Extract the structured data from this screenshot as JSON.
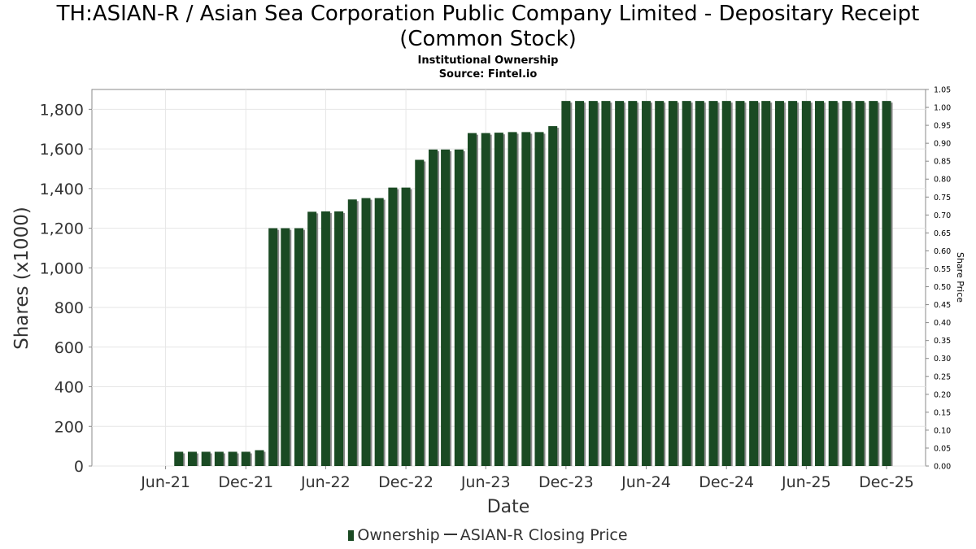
{
  "header": {
    "title_line1": "TH:ASIAN-R / Asian Sea Corporation Public Company Limited - Depositary Receipt",
    "title_line2": "(Common Stock)",
    "subtitle": "Institutional Ownership",
    "source": "Source: Fintel.io"
  },
  "legend": {
    "ownership_label": "Ownership",
    "price_label": "ASIAN-R Closing Price"
  },
  "colors": {
    "bar": "#1a4a23",
    "bar_shadow": "#8a8a8a",
    "grid": "#e6e6e6",
    "axis": "#888888"
  },
  "chart_data": {
    "type": "bar",
    "title": "TH:ASIAN-R / Asian Sea Corporation Public Company Limited - Depositary Receipt (Common Stock)",
    "xlabel": "Date",
    "ylabel": "Shares (x1000)",
    "y2label": "Share Price",
    "ylim": [
      0,
      1900
    ],
    "y2lim": [
      0,
      1.05
    ],
    "xlim": [
      "2020-12-15",
      "2026-02-28"
    ],
    "yticks": [
      0,
      200,
      400,
      600,
      800,
      1000,
      1200,
      1400,
      1600,
      1800
    ],
    "ytick_labels": [
      "0",
      "200",
      "400",
      "600",
      "800",
      "1,000",
      "1,200",
      "1,400",
      "1,600",
      "1,800"
    ],
    "y2ticks": [
      0,
      0.05,
      0.1,
      0.15,
      0.2,
      0.25,
      0.3,
      0.35,
      0.4,
      0.45,
      0.5,
      0.55,
      0.6,
      0.65,
      0.7,
      0.75,
      0.8,
      0.85,
      0.9,
      0.95,
      1.0,
      1.05
    ],
    "y2tick_labels": [
      "0.00",
      "0.05",
      "0.10",
      "0.15",
      "0.20",
      "0.25",
      "0.30",
      "0.35",
      "0.40",
      "0.45",
      "0.50",
      "0.55",
      "0.60",
      "0.65",
      "0.70",
      "0.75",
      "0.80",
      "0.85",
      "0.90",
      "0.95",
      "1.00",
      "1.05"
    ],
    "xticks": [
      {
        "date": "2021-06-01",
        "label": "Jun-21"
      },
      {
        "date": "2021-12-01",
        "label": "Dec-21"
      },
      {
        "date": "2022-06-01",
        "label": "Jun-22"
      },
      {
        "date": "2022-12-01",
        "label": "Dec-22"
      },
      {
        "date": "2023-06-01",
        "label": "Jun-23"
      },
      {
        "date": "2023-12-01",
        "label": "Dec-23"
      },
      {
        "date": "2024-06-01",
        "label": "Jun-24"
      },
      {
        "date": "2024-12-01",
        "label": "Dec-24"
      },
      {
        "date": "2025-06-01",
        "label": "Jun-25"
      },
      {
        "date": "2025-12-01",
        "label": "Dec-25"
      }
    ],
    "series": [
      {
        "name": "Ownership",
        "start_date": "2021-07-01",
        "interval_months": 1,
        "values": [
          72,
          72,
          72,
          72,
          72,
          72,
          80,
          1200,
          1200,
          1200,
          1283,
          1285,
          1285,
          1345,
          1352,
          1352,
          1405,
          1405,
          1545,
          1597,
          1597,
          1597,
          1680,
          1680,
          1682,
          1685,
          1685,
          1685,
          1715,
          1842,
          1842,
          1842,
          1842,
          1842,
          1842,
          1842,
          1842,
          1842,
          1842,
          1842,
          1842,
          1842,
          1842,
          1842,
          1842,
          1842,
          1842,
          1842,
          1842,
          1842,
          1842,
          1842,
          1842,
          1842
        ]
      },
      {
        "name": "ASIAN-R Closing Price",
        "values": []
      }
    ]
  }
}
